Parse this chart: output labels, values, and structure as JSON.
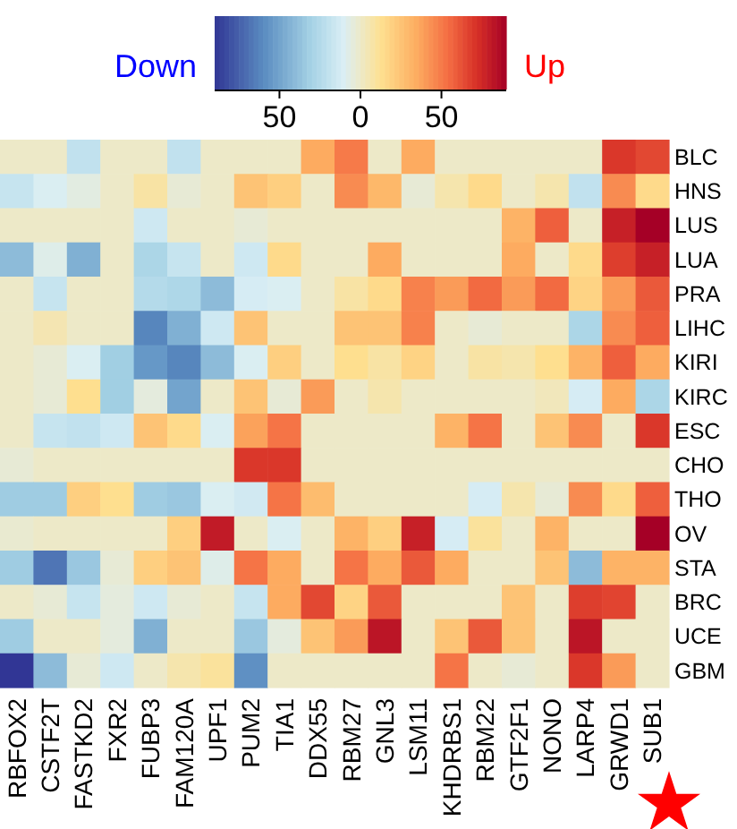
{
  "chart_data": {
    "type": "heatmap",
    "categories": [
      "RBFOX2",
      "CSTF2T",
      "FASTKD2",
      "FXR2",
      "FUBP3",
      "FAM120A",
      "UPF1",
      "PUM2",
      "TIA1",
      "DDX55",
      "RBM27",
      "GNL3",
      "LSM11",
      "KHDRBS1",
      "RBM22",
      "GTF2F1",
      "NONO",
      "LARP4",
      "GRWD1",
      "SUB1"
    ],
    "y_categories": [
      "BLC",
      "HNS",
      "LUS",
      "LUA",
      "PRA",
      "LIHC",
      "KIRI",
      "KIRC",
      "ESC",
      "CHO",
      "THO",
      "OV",
      "STA",
      "BRC",
      "UCE",
      "GBM"
    ],
    "cells": [
      [
        0,
        0,
        -20,
        0,
        0,
        -20,
        0,
        0,
        0,
        35,
        50,
        0,
        35,
        0,
        0,
        0,
        0,
        0,
        70,
        65
      ],
      [
        -18,
        -10,
        -6,
        0,
        8,
        -3,
        0,
        25,
        20,
        0,
        45,
        30,
        -3,
        6,
        15,
        0,
        6,
        -20,
        45,
        15
      ],
      [
        0,
        0,
        0,
        0,
        -15,
        0,
        0,
        -3,
        0,
        0,
        0,
        0,
        0,
        0,
        0,
        32,
        58,
        0,
        78,
        90
      ],
      [
        -40,
        -8,
        -45,
        0,
        -28,
        -18,
        0,
        -15,
        15,
        0,
        0,
        35,
        0,
        0,
        0,
        35,
        0,
        15,
        68,
        78
      ],
      [
        0,
        -18,
        0,
        0,
        -25,
        -27,
        -40,
        -12,
        -10,
        0,
        8,
        15,
        48,
        40,
        55,
        40,
        55,
        18,
        40,
        60
      ],
      [
        0,
        5,
        0,
        0,
        -62,
        -45,
        -15,
        25,
        0,
        0,
        25,
        25,
        48,
        0,
        -3,
        0,
        0,
        -28,
        45,
        58
      ],
      [
        0,
        -3,
        -10,
        -32,
        -55,
        -62,
        -40,
        -10,
        20,
        0,
        13,
        8,
        18,
        0,
        8,
        6,
        13,
        32,
        58,
        35
      ],
      [
        0,
        -3,
        13,
        -32,
        -5,
        -50,
        0,
        25,
        -3,
        40,
        0,
        6,
        0,
        0,
        0,
        0,
        3,
        -12,
        35,
        -28
      ],
      [
        0,
        -18,
        -20,
        -15,
        25,
        15,
        -10,
        38,
        52,
        0,
        0,
        0,
        0,
        32,
        52,
        0,
        25,
        45,
        0,
        70
      ],
      [
        -3,
        0,
        0,
        0,
        0,
        0,
        0,
        70,
        70,
        0,
        0,
        0,
        0,
        0,
        0,
        0,
        0,
        0,
        0,
        0
      ],
      [
        -33,
        -33,
        20,
        13,
        -33,
        -35,
        -10,
        -14,
        52,
        28,
        0,
        0,
        0,
        0,
        -12,
        6,
        -3,
        45,
        15,
        58
      ],
      [
        -2,
        0,
        0,
        0,
        0,
        20,
        80,
        0,
        -10,
        0,
        32,
        20,
        78,
        -12,
        10,
        0,
        32,
        0,
        0,
        90
      ],
      [
        -33,
        -68,
        -35,
        -3,
        20,
        25,
        -8,
        52,
        35,
        0,
        52,
        35,
        60,
        35,
        0,
        0,
        25,
        -40,
        32,
        32
      ],
      [
        0,
        -3,
        -18,
        -5,
        -15,
        -3,
        0,
        -18,
        35,
        65,
        18,
        60,
        0,
        0,
        0,
        25,
        0,
        68,
        66,
        0
      ],
      [
        -33,
        0,
        0,
        -5,
        -45,
        0,
        0,
        -35,
        -5,
        25,
        40,
        82,
        0,
        25,
        60,
        25,
        0,
        82,
        0,
        0
      ],
      [
        -90,
        -40,
        -3,
        -15,
        0,
        6,
        10,
        -58,
        0,
        0,
        0,
        0,
        0,
        52,
        0,
        -3,
        0,
        70,
        40,
        0
      ]
    ],
    "clim": [
      -90,
      90
    ],
    "cticks": [
      {
        "value": -50,
        "label": "50"
      },
      {
        "value": 0,
        "label": "0"
      },
      {
        "value": 50,
        "label": "50"
      }
    ],
    "annotations": [
      "Down",
      "Up"
    ]
  }
}
